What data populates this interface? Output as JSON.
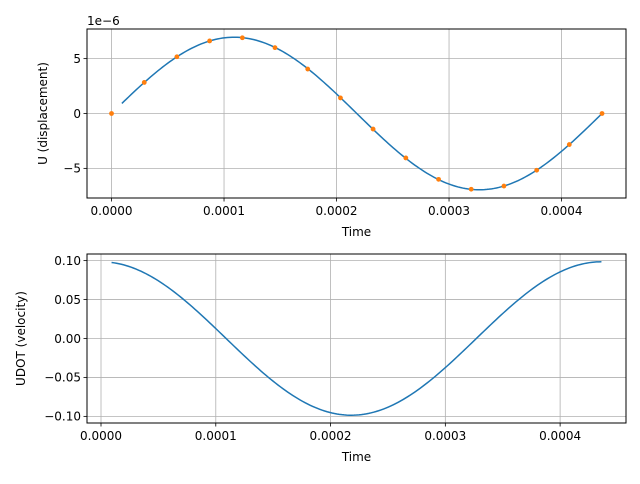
{
  "chart_data": [
    {
      "type": "line",
      "xlabel": "Time",
      "ylabel": "U (displacement)",
      "offset_label": "1e−6",
      "xlim": [
        -2.18e-05,
        0.0004573
      ],
      "ylim": [
        -7.7,
        7.7
      ],
      "xticks": [
        0.0,
        0.0001,
        0.0002,
        0.0003,
        0.0004
      ],
      "xtick_labels": [
        "0.0000",
        "0.0001",
        "0.0002",
        "0.0003",
        "0.0004"
      ],
      "yticks": [
        -5,
        0,
        5
      ],
      "ytick_labels": [
        "−5",
        "0",
        "5"
      ],
      "grid": true,
      "series": [
        {
          "kind": "line",
          "color": "#1f77b4",
          "amplitude": 6.95,
          "period": 0.000436,
          "x_start": 9.2e-06,
          "x_end": 0.000436
        },
        {
          "kind": "points",
          "color": "#ff7f0e",
          "x": [
            0.0,
            2.91e-05,
            5.81e-05,
            8.72e-05,
            0.0001163,
            0.0001453,
            0.0001744,
            0.0002035,
            0.0002325,
            0.0002616,
            0.0002907,
            0.0003197,
            0.0003488,
            0.0003779,
            0.0004069,
            0.000436
          ],
          "y": [
            0.0,
            2.83,
            5.17,
            6.61,
            6.9,
            6.0,
            4.05,
            1.42,
            -1.42,
            -4.05,
            -6.0,
            -6.9,
            -6.61,
            -5.17,
            -2.83,
            0.0
          ]
        }
      ]
    },
    {
      "type": "line",
      "xlabel": "Time",
      "ylabel": "UDOT (velocity)",
      "xlim": [
        -1.22e-05,
        0.0004574
      ],
      "ylim": [
        -0.1085,
        0.1085
      ],
      "xticks": [
        0.0,
        0.0001,
        0.0002,
        0.0003,
        0.0004
      ],
      "xtick_labels": [
        "0.0000",
        "0.0001",
        "0.0002",
        "0.0003",
        "0.0004"
      ],
      "yticks": [
        -0.1,
        -0.05,
        0.0,
        0.05,
        0.1
      ],
      "ytick_labels": [
        "−0.10",
        "−0.05",
        "0.00",
        "0.05",
        "0.10"
      ],
      "grid": true,
      "series": [
        {
          "kind": "line",
          "color": "#1f77b4",
          "amplitude": 0.0985,
          "period": 0.000436,
          "x_start": 9.2e-06,
          "x_end": 0.000436
        }
      ]
    }
  ]
}
